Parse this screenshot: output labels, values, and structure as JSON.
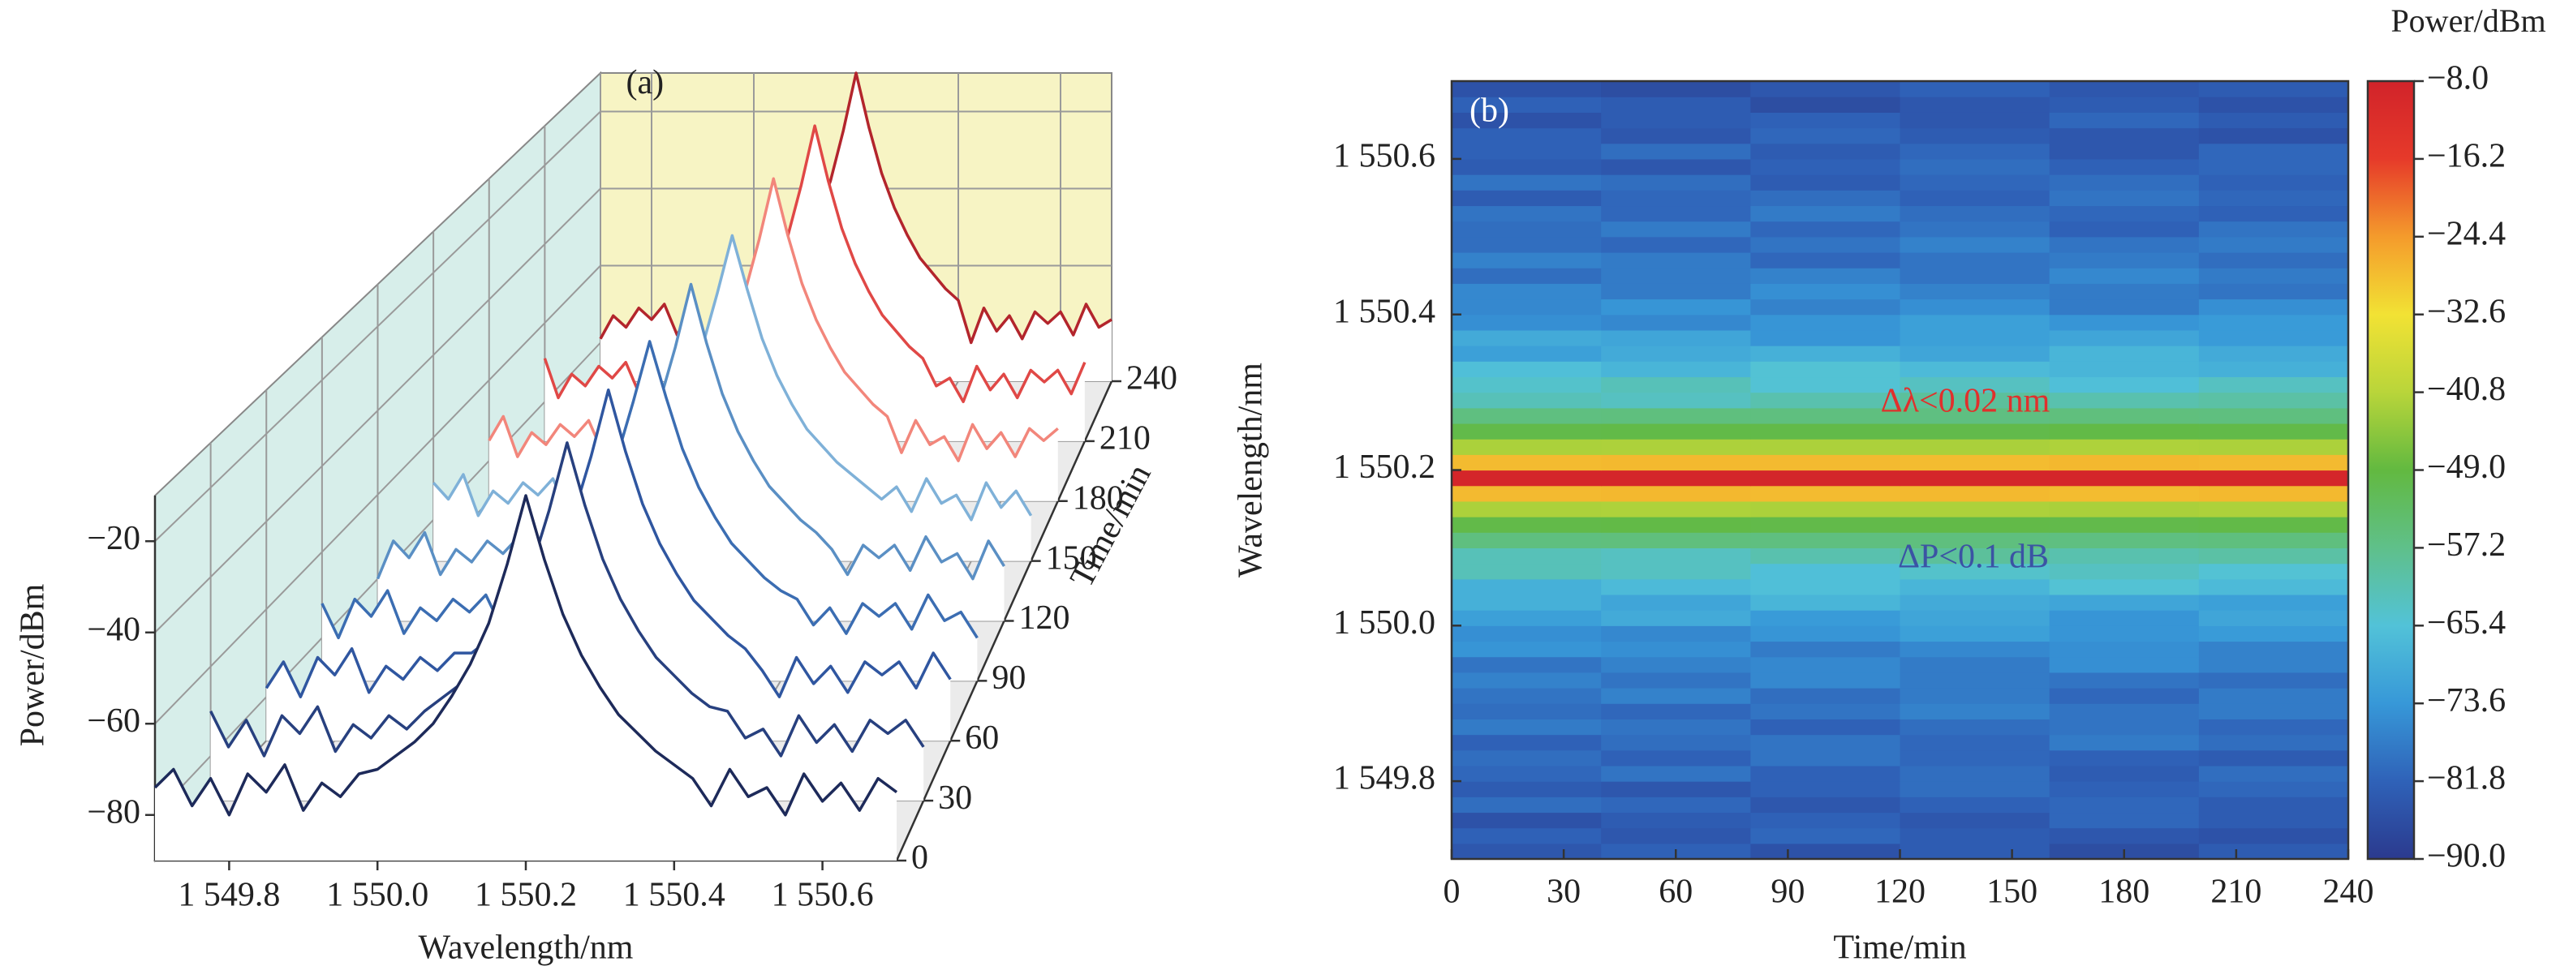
{
  "chart_data": [
    {
      "type": "waterfall",
      "panel_label": "(a)",
      "x": [
        1549.7,
        1549.725,
        1549.75,
        1549.775,
        1549.8,
        1549.825,
        1549.85,
        1549.875,
        1549.9,
        1549.925,
        1549.95,
        1549.975,
        1550,
        1550.025,
        1550.05,
        1550.075,
        1550.1,
        1550.125,
        1550.15,
        1550.175,
        1550.2,
        1550.225,
        1550.25,
        1550.275,
        1550.3,
        1550.325,
        1550.35,
        1550.375,
        1550.4,
        1550.425,
        1550.45,
        1550.475,
        1550.5,
        1550.525,
        1550.55,
        1550.575,
        1550.6,
        1550.625,
        1550.65,
        1550.675,
        1550.7
      ],
      "xlim": [
        1549.7,
        1550.7
      ],
      "xticks": [
        {
          "value": 1549.8,
          "label": "1 549.8"
        },
        {
          "value": 1550.0,
          "label": "1 550.0"
        },
        {
          "value": 1550.2,
          "label": "1 550.2"
        },
        {
          "value": 1550.4,
          "label": "1 550.4"
        },
        {
          "value": 1550.6,
          "label": "1 550.6"
        }
      ],
      "xlabel": "Wavelength/nm",
      "ylim": [
        -90,
        -10
      ],
      "yticks": [
        {
          "value": -20,
          "label": "−20"
        },
        {
          "value": -40,
          "label": "−40"
        },
        {
          "value": -60,
          "label": "−60"
        },
        {
          "value": -80,
          "label": "−80"
        }
      ],
      "ylabel": "Power/dBm",
      "zlim": [
        0,
        240
      ],
      "zticks": [
        0,
        30,
        60,
        90,
        120,
        150,
        180,
        210,
        240
      ],
      "zlabel": "Time/min",
      "series": [
        {
          "z": 0,
          "color": "#1d2a5a",
          "values": [
            -74,
            -70,
            -78,
            -72,
            -80,
            -71,
            -75,
            -69,
            -79,
            -73,
            -76,
            -71,
            -70,
            -67,
            -64,
            -60,
            -54,
            -47,
            -38,
            -25,
            -10,
            -24,
            -36,
            -45,
            -52,
            -58,
            -62,
            -66,
            -69,
            -72,
            -78,
            -70,
            -76,
            -74,
            -80,
            -71,
            -77,
            -73,
            -79,
            -72,
            -75
          ]
        },
        {
          "z": 30,
          "color": "#27407f",
          "values": [
            -70,
            -78,
            -72,
            -80,
            -71,
            -75,
            -69,
            -79,
            -73,
            -76,
            -71,
            -74,
            -70,
            -67,
            -64,
            -60,
            -54,
            -47,
            -38,
            -25,
            -10,
            -24,
            -36,
            -45,
            -52,
            -58,
            -62,
            -66,
            -69,
            -70,
            -76,
            -74,
            -80,
            -71,
            -77,
            -73,
            -79,
            -72,
            -75,
            -72,
            -78
          ]
        },
        {
          "z": 60,
          "color": "#2f56a0",
          "values": [
            -78,
            -72,
            -80,
            -71,
            -75,
            -69,
            -79,
            -73,
            -76,
            -71,
            -74,
            -70,
            -70,
            -67,
            -64,
            -60,
            -54,
            -47,
            -38,
            -25,
            -10,
            -24,
            -36,
            -45,
            -52,
            -58,
            -62,
            -66,
            -69,
            -74,
            -80,
            -71,
            -77,
            -73,
            -79,
            -72,
            -75,
            -72,
            -78,
            -70,
            -76
          ]
        },
        {
          "z": 90,
          "color": "#3b6db2",
          "values": [
            -72,
            -80,
            -71,
            -75,
            -69,
            -79,
            -73,
            -76,
            -71,
            -74,
            -70,
            -78,
            -70,
            -67,
            -64,
            -60,
            -54,
            -47,
            -38,
            -25,
            -11,
            -24,
            -36,
            -45,
            -52,
            -58,
            -62,
            -66,
            -69,
            -71,
            -77,
            -73,
            -79,
            -72,
            -75,
            -72,
            -78,
            -70,
            -76,
            -74,
            -80
          ]
        },
        {
          "z": 120,
          "color": "#5a8fc4",
          "values": [
            -80,
            -71,
            -75,
            -69,
            -79,
            -73,
            -76,
            -71,
            -74,
            -70,
            -78,
            -72,
            -70,
            -67,
            -64,
            -60,
            -54,
            -47,
            -38,
            -25,
            -10,
            -24,
            -36,
            -45,
            -52,
            -58,
            -62,
            -66,
            -69,
            -73,
            -79,
            -72,
            -75,
            -72,
            -78,
            -70,
            -76,
            -74,
            -80,
            -71,
            -77
          ]
        },
        {
          "z": 150,
          "color": "#7fb1d8",
          "values": [
            -71,
            -75,
            -69,
            -79,
            -73,
            -76,
            -71,
            -74,
            -70,
            -78,
            -72,
            -80,
            -70,
            -67,
            -64,
            -60,
            -54,
            -47,
            -38,
            -25,
            -11,
            -24,
            -36,
            -45,
            -52,
            -58,
            -62,
            -66,
            -69,
            -72,
            -75,
            -72,
            -78,
            -70,
            -76,
            -74,
            -80,
            -71,
            -77,
            -73,
            -79
          ]
        },
        {
          "z": 180,
          "color": "#f2867b",
          "values": [
            -75,
            -69,
            -79,
            -73,
            -76,
            -71,
            -74,
            -70,
            -78,
            -72,
            -80,
            -71,
            -70,
            -67,
            -64,
            -60,
            -54,
            -47,
            -38,
            -25,
            -10,
            -24,
            -36,
            -45,
            -52,
            -58,
            -62,
            -66,
            -69,
            -78,
            -70,
            -76,
            -74,
            -80,
            -71,
            -77,
            -73,
            -79,
            -72,
            -75,
            -72
          ]
        },
        {
          "z": 210,
          "color": "#e04846",
          "values": [
            -69,
            -79,
            -73,
            -76,
            -71,
            -74,
            -70,
            -78,
            -72,
            -80,
            -71,
            -75,
            -70,
            -67,
            -64,
            -60,
            -54,
            -47,
            -38,
            -25,
            -10,
            -24,
            -36,
            -45,
            -52,
            -58,
            -62,
            -66,
            -69,
            -76,
            -74,
            -80,
            -71,
            -77,
            -73,
            -79,
            -72,
            -75,
            -72,
            -78,
            -70
          ]
        },
        {
          "z": 240,
          "color": "#b3252c",
          "values": [
            -79,
            -73,
            -76,
            -71,
            -74,
            -70,
            -78,
            -72,
            -80,
            -71,
            -75,
            -69,
            -70,
            -67,
            -64,
            -60,
            -54,
            -47,
            -38,
            -25,
            -10,
            -24,
            -36,
            -45,
            -52,
            -58,
            -62,
            -66,
            -69,
            -80,
            -71,
            -77,
            -73,
            -79,
            -72,
            -75,
            -72,
            -78,
            -70,
            -76,
            -74
          ]
        }
      ]
    },
    {
      "type": "heatmap",
      "panel_label": "(b)",
      "x": [
        20,
        60,
        100,
        140,
        180,
        220
      ],
      "xlim": [
        0,
        240
      ],
      "xticks": [
        0,
        30,
        60,
        90,
        120,
        150,
        180,
        210,
        240
      ],
      "xlabel": "Time/min",
      "y": [
        1549.71,
        1549.73,
        1549.75,
        1549.77,
        1549.79,
        1549.81,
        1549.83,
        1549.85,
        1549.87,
        1549.89,
        1549.91,
        1549.93,
        1549.95,
        1549.97,
        1549.99,
        1550.01,
        1550.03,
        1550.05,
        1550.07,
        1550.09,
        1550.11,
        1550.13,
        1550.15,
        1550.17,
        1550.19,
        1550.21,
        1550.23,
        1550.25,
        1550.27,
        1550.29,
        1550.31,
        1550.33,
        1550.35,
        1550.37,
        1550.39,
        1550.41,
        1550.43,
        1550.45,
        1550.47,
        1550.49,
        1550.51,
        1550.53,
        1550.55,
        1550.57,
        1550.59,
        1550.61,
        1550.63,
        1550.65,
        1550.67,
        1550.69
      ],
      "ylim": [
        1549.7,
        1550.7
      ],
      "yticks": [
        {
          "value": 1549.8,
          "label": "1 549.8"
        },
        {
          "value": 1550.0,
          "label": "1 550.0"
        },
        {
          "value": 1550.2,
          "label": "1 550.2"
        },
        {
          "value": 1550.4,
          "label": "1 550.4"
        },
        {
          "value": 1550.6,
          "label": "1 550.6"
        }
      ],
      "ylabel": "Wavelength/nm",
      "values": [
        [
          -84,
          -82,
          -85,
          -83,
          -86,
          -83
        ],
        [
          -82,
          -84,
          -81,
          -83,
          -84,
          -85
        ],
        [
          -85,
          -83,
          -82,
          -84,
          -81,
          -83
        ],
        [
          -80,
          -81,
          -84,
          -82,
          -81,
          -83
        ],
        [
          -83,
          -84,
          -82,
          -80,
          -82,
          -81
        ],
        [
          -81,
          -79,
          -82,
          -80,
          -83,
          -80
        ],
        [
          -80,
          -82,
          -79,
          -81,
          -82,
          -83
        ],
        [
          -82,
          -80,
          -79,
          -81,
          -78,
          -80
        ],
        [
          -78,
          -79,
          -82,
          -80,
          -79,
          -81
        ],
        [
          -80,
          -81,
          -79,
          -77,
          -79,
          -78
        ],
        [
          -79,
          -77,
          -80,
          -78,
          -81,
          -78
        ],
        [
          -77,
          -79,
          -76,
          -78,
          -79,
          -80
        ],
        [
          -79,
          -77,
          -76,
          -78,
          -75,
          -77
        ],
        [
          -74,
          -75,
          -78,
          -76,
          -75,
          -77
        ],
        [
          -75,
          -76,
          -74,
          -72,
          -74,
          -73
        ],
        [
          -72,
          -70,
          -73,
          -71,
          -74,
          -71
        ],
        [
          -69,
          -71,
          -68,
          -70,
          -71,
          -72
        ],
        [
          -69,
          -67,
          -66,
          -68,
          -65,
          -67
        ],
        [
          -62,
          -63,
          -66,
          -64,
          -63,
          -65
        ],
        [
          -62,
          -63,
          -61,
          -59,
          -61,
          -60
        ],
        [
          -56,
          -55.8,
          -56.1,
          -55.9,
          -56.2,
          -55.9
        ],
        [
          -50,
          -49.8,
          -50.1,
          -49.9,
          -50.2,
          -49.9
        ],
        [
          -42,
          -41.8,
          -42.1,
          -41.9,
          -42.2,
          -41.9
        ],
        [
          -28,
          -27.8,
          -28.1,
          -27.9,
          -28.2,
          -27.9
        ],
        [
          -9,
          -9.1,
          -8.9,
          -9,
          -9.1,
          -9
        ],
        [
          -28.1,
          -27.9,
          -28,
          -28.2,
          -27.8,
          -28
        ],
        [
          -42.1,
          -41.9,
          -42,
          -42.2,
          -41.8,
          -42
        ],
        [
          -50.1,
          -49.9,
          -50,
          -50.2,
          -49.8,
          -50
        ],
        [
          -56.1,
          -55.9,
          -56,
          -56.2,
          -55.8,
          -56
        ],
        [
          -62,
          -63,
          -61,
          -59,
          -61,
          -60
        ],
        [
          -64,
          -62,
          -65,
          -63,
          -66,
          -63
        ],
        [
          -66,
          -68,
          -65,
          -67,
          -68,
          -69
        ],
        [
          -72,
          -70,
          -69,
          -71,
          -68,
          -70
        ],
        [
          -70,
          -71,
          -74,
          -72,
          -71,
          -73
        ],
        [
          -75,
          -76,
          -74,
          -72,
          -74,
          -73
        ],
        [
          -76,
          -74,
          -77,
          -75,
          -78,
          -75
        ],
        [
          -76,
          -78,
          -75,
          -77,
          -78,
          -79
        ],
        [
          -80,
          -78,
          -77,
          -79,
          -76,
          -78
        ],
        [
          -77,
          -78,
          -81,
          -79,
          -78,
          -80
        ],
        [
          -80,
          -81,
          -79,
          -77,
          -79,
          -78
        ],
        [
          -80,
          -78,
          -81,
          -79,
          -82,
          -79
        ],
        [
          -79,
          -81,
          -78,
          -80,
          -81,
          -82
        ],
        [
          -83,
          -81,
          -80,
          -82,
          -79,
          -81
        ],
        [
          -79,
          -80,
          -83,
          -81,
          -80,
          -82
        ],
        [
          -83,
          -84,
          -82,
          -80,
          -82,
          -81
        ],
        [
          -82,
          -80,
          -83,
          -81,
          -84,
          -81
        ],
        [
          -82,
          -84,
          -81,
          -83,
          -84,
          -85
        ],
        [
          -85,
          -83,
          -82,
          -84,
          -81,
          -83
        ],
        [
          -82,
          -83,
          -86,
          -84,
          -83,
          -85
        ],
        [
          -85,
          -86,
          -84,
          -82,
          -84,
          -83
        ]
      ],
      "zlim": [
        -90,
        -8
      ],
      "zticks": [
        {
          "value": -8.0,
          "label": "−8.0"
        },
        {
          "value": -16.2,
          "label": "−16.2"
        },
        {
          "value": -24.4,
          "label": "−24.4"
        },
        {
          "value": -32.6,
          "label": "−32.6"
        },
        {
          "value": -40.8,
          "label": "−40.8"
        },
        {
          "value": -49.0,
          "label": "−49.0"
        },
        {
          "value": -57.2,
          "label": "−57.2"
        },
        {
          "value": -65.4,
          "label": "−65.4"
        },
        {
          "value": -73.6,
          "label": "−73.6"
        },
        {
          "value": -81.8,
          "label": "−81.8"
        },
        {
          "value": -90.0,
          "label": "−90.0"
        }
      ],
      "zlabel": "Power/dBm",
      "colormap": [
        "#2b3a8e",
        "#2f62b8",
        "#3798d8",
        "#52c2d8",
        "#5fc08a",
        "#62b940",
        "#b9d53a",
        "#f2e234",
        "#f49b2c",
        "#e63a2a",
        "#d1232a"
      ],
      "annotations": [
        {
          "text": "Δλ<0.02 nm",
          "color": "#e0302c"
        },
        {
          "text": "ΔP<0.1 dB",
          "color": "#3b53a4"
        }
      ]
    }
  ]
}
